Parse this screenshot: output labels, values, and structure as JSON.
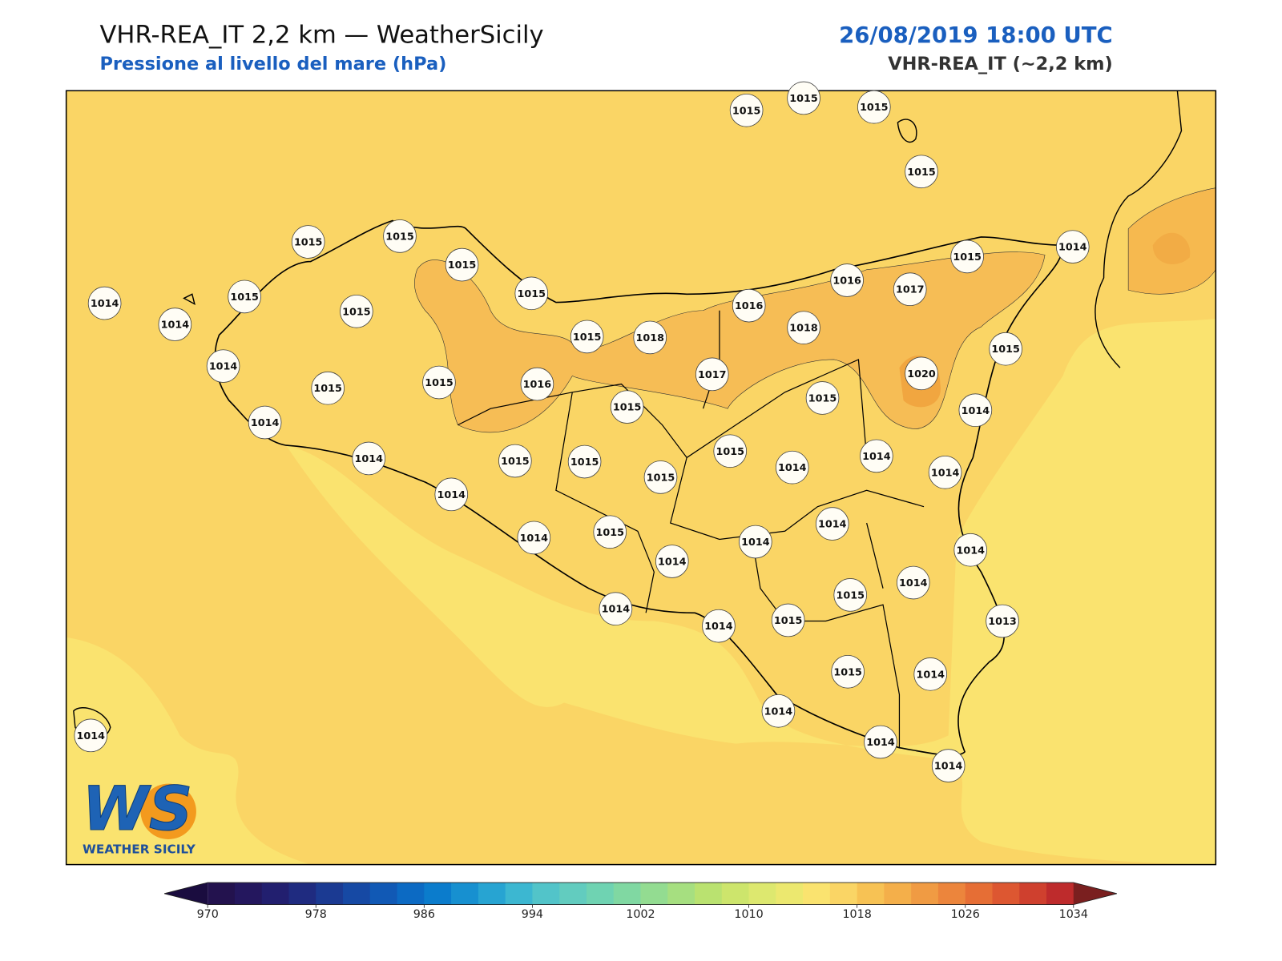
{
  "header": {
    "title": "VHR-REA_IT 2,2 km — WeatherSicily",
    "subtitle": "Pressione al livello del mare (hPa)",
    "date": "26/08/2019 18:00 UTC",
    "model": "VHR-REA_IT (~2,2 km)"
  },
  "stations": [
    1015,
    1015,
    1015,
    1015,
    1015,
    1015,
    1015,
    1015,
    1014,
    1014,
    1015,
    1015,
    1014,
    1015,
    1015,
    1016,
    1015,
    1018,
    1016,
    1016,
    1017,
    1015,
    1014,
    1018,
    1017,
    1015,
    1015,
    1020,
    1015,
    1014,
    1014,
    1014,
    1014,
    1015,
    1015,
    1015,
    1015,
    1014,
    1014,
    1014,
    1014,
    1014,
    1015,
    1014,
    1014,
    1014,
    1014,
    1015,
    1015,
    1013,
    1014,
    1014,
    1015,
    1014,
    1014,
    1014,
    1014,
    1014
  ],
  "logo": {
    "text": "WS",
    "caption": "WEATHER SICILY"
  },
  "colorbar": {
    "lim": [
      970,
      1034
    ],
    "ticks": [
      970,
      978,
      986,
      994,
      1002,
      1010,
      1018,
      1026,
      1034
    ],
    "colors": [
      "#23124e",
      "#24175e",
      "#221f6f",
      "#1f2b80",
      "#1b3a92",
      "#1649a4",
      "#1159b5",
      "#0c6ac3",
      "#0b7ccc",
      "#1790d0",
      "#27a4d2",
      "#3cb7d1",
      "#52c4c9",
      "#62ccbf",
      "#6fd3b2",
      "#80d8a2",
      "#93dc91",
      "#a6df80",
      "#bae270",
      "#cde56c",
      "#dde86f",
      "#ece86f",
      "#fae36f",
      "#fad565",
      "#f7c254",
      "#f4af4a",
      "#f09b43",
      "#ec853c",
      "#e66e35",
      "#dd5731",
      "#cf402e",
      "#be2b2c"
    ],
    "under": "#1a0c3f",
    "over": "#7a1f1f"
  }
}
